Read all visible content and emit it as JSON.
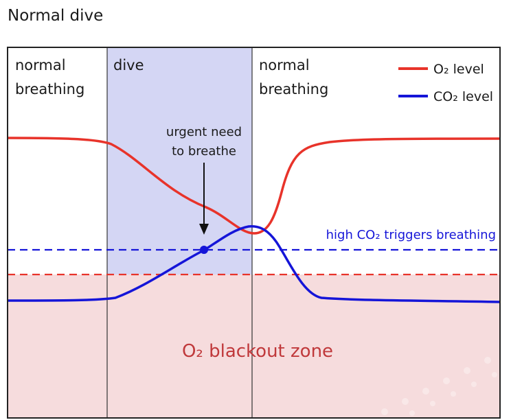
{
  "title": "Normal dive",
  "phases": [
    {
      "line1": "normal",
      "line2": "breathing"
    },
    {
      "line1": "dive",
      "line2": ""
    },
    {
      "line1": "normal",
      "line2": "breathing"
    }
  ],
  "legend": [
    {
      "label": "O₂ level",
      "color": "#e8332a"
    },
    {
      "label": "CO₂ level",
      "color": "#1515d8"
    }
  ],
  "annotation": {
    "line1": "urgent need",
    "line2": "to breathe"
  },
  "threshold_label": "high CO₂ triggers breathing",
  "zone_label": "O₂ blackout zone",
  "colors": {
    "o2": "#e8332a",
    "co2": "#1515d8",
    "dive_band": "#d4d6f4",
    "blackout": "#f6dcdd",
    "zone_text": "#c0393b",
    "frame": "#222222"
  }
}
